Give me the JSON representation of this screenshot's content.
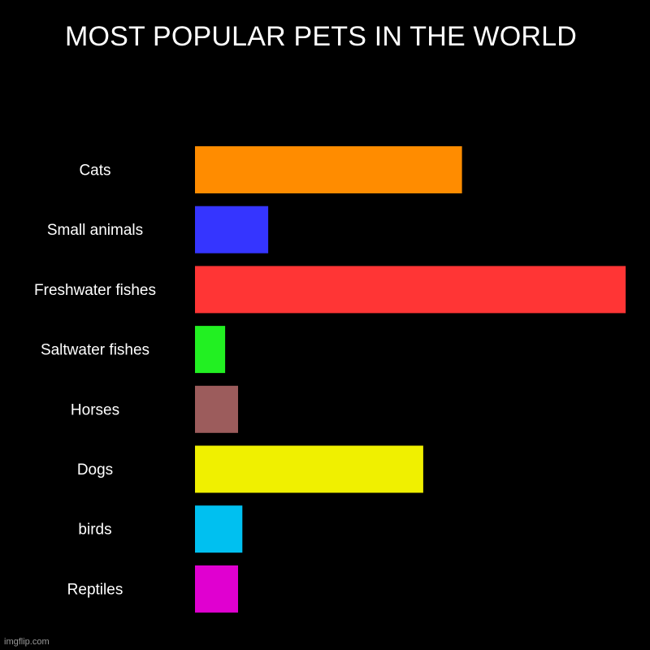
{
  "chart_data": {
    "type": "bar",
    "orientation": "horizontal",
    "title": "MOST POPULAR PETS IN THE WORLD",
    "xlabel": "",
    "ylabel": "",
    "grid": false,
    "legend": "none",
    "categories": [
      "Cats",
      "Small animals",
      "Freshwater fishes",
      "Saltwater fishes",
      "Horses",
      "Dogs",
      "birds",
      "Reptiles"
    ],
    "values": [
      62,
      17,
      100,
      7,
      10,
      53,
      11,
      10
    ],
    "colors": [
      "#ff8c00",
      "#3535ff",
      "#ff3535",
      "#22f022",
      "#9c5c5c",
      "#f0f000",
      "#00c0f0",
      "#e000d0"
    ],
    "xlim": [
      0,
      100
    ]
  },
  "background_color": "#000000",
  "watermark": "imgflip.com"
}
